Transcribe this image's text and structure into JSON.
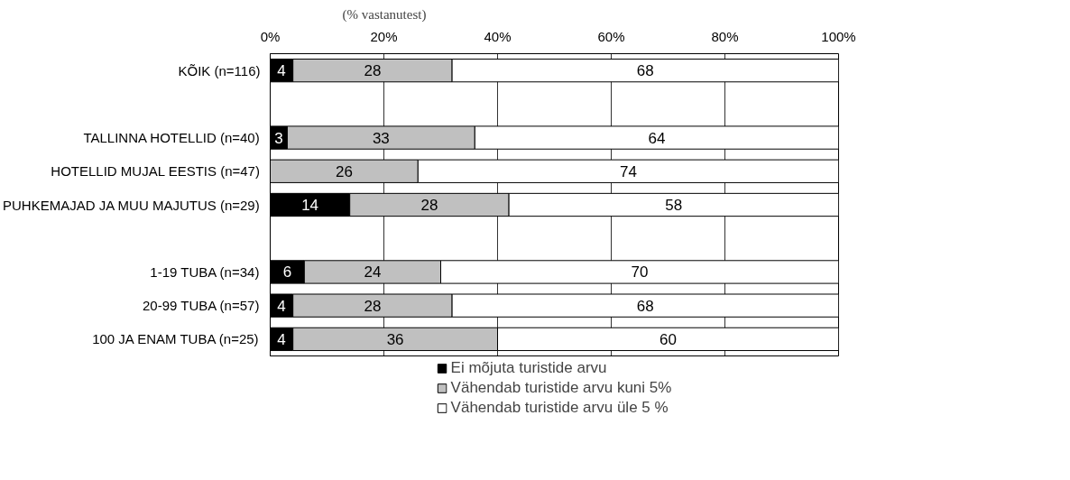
{
  "chart_data": {
    "type": "bar",
    "orientation": "horizontal",
    "stacked": true,
    "subtitle": "(% vastanutest)",
    "categories": [
      "KÕIK (n=116)",
      null,
      "TALLINNA HOTELLID (n=40)",
      "HOTELLID MUJAL EESTIS (n=47)",
      "PUHKEMAJAD JA MUU MAJUTUS (n=29)",
      null,
      "1-19 TUBA (n=34)",
      "20-99 TUBA (n=57)",
      "100 JA ENAM TUBA (n=25)"
    ],
    "series": [
      {
        "name": "Ei mõjuta turistide arvu",
        "color": "#000000",
        "values": [
          4,
          null,
          3,
          null,
          14,
          null,
          6,
          4,
          4
        ]
      },
      {
        "name": "Vähendab turistide arvu kuni 5%",
        "color": "#c0c0c0",
        "values": [
          28,
          null,
          33,
          26,
          28,
          null,
          24,
          28,
          36
        ]
      },
      {
        "name": "Vähendab turistide arvu üle 5 %",
        "color": "#ffffff",
        "values": [
          68,
          null,
          64,
          74,
          58,
          null,
          70,
          68,
          60
        ]
      }
    ],
    "xlim": [
      0,
      100
    ],
    "xticks": [
      {
        "value": 0,
        "label": "0%"
      },
      {
        "value": 20,
        "label": "20%"
      },
      {
        "value": 40,
        "label": "40%"
      },
      {
        "value": 60,
        "label": "60%"
      },
      {
        "value": 80,
        "label": "80%"
      },
      {
        "value": 100,
        "label": "100%"
      }
    ],
    "grid": "x",
    "legend": "bottom",
    "data_labels": true
  }
}
